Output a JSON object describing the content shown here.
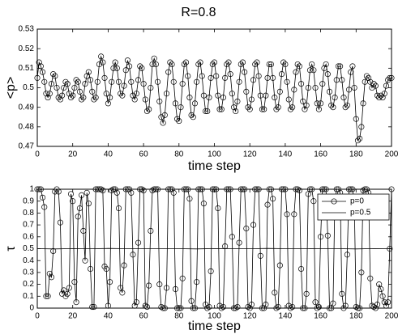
{
  "chart_data": [
    {
      "type": "line",
      "title": "R=0.8",
      "xlabel": "time step",
      "ylabel": "<p>",
      "xlim": [
        0,
        200
      ],
      "xticks": [
        0,
        20,
        40,
        60,
        80,
        100,
        120,
        140,
        160,
        180,
        200
      ],
      "ylim": [
        0.47,
        0.53
      ],
      "yticks": [
        0.47,
        0.48,
        0.49,
        0.5,
        0.51,
        0.52,
        0.53
      ],
      "x": [
        0,
        1,
        2,
        3,
        4,
        5,
        6,
        7,
        8,
        9,
        10,
        11,
        12,
        13,
        14,
        15,
        16,
        17,
        18,
        19,
        20,
        21,
        22,
        23,
        24,
        25,
        26,
        27,
        28,
        29,
        30,
        31,
        32,
        33,
        34,
        35,
        36,
        37,
        38,
        39,
        40,
        41,
        42,
        43,
        44,
        45,
        46,
        47,
        48,
        49,
        50,
        51,
        52,
        53,
        54,
        55,
        56,
        57,
        58,
        59,
        60,
        61,
        62,
        63,
        64,
        65,
        66,
        67,
        68,
        69,
        70,
        71,
        72,
        73,
        74,
        75,
        76,
        77,
        78,
        79,
        80,
        81,
        82,
        83,
        84,
        85,
        86,
        87,
        88,
        89,
        90,
        91,
        92,
        93,
        94,
        95,
        96,
        97,
        98,
        99,
        100,
        101,
        102,
        103,
        104,
        105,
        106,
        107,
        108,
        109,
        110,
        111,
        112,
        113,
        114,
        115,
        116,
        117,
        118,
        119,
        120,
        121,
        122,
        123,
        124,
        125,
        126,
        127,
        128,
        129,
        130,
        131,
        132,
        133,
        134,
        135,
        136,
        137,
        138,
        139,
        140,
        141,
        142,
        143,
        144,
        145,
        146,
        147,
        148,
        149,
        150,
        151,
        152,
        153,
        154,
        155,
        156,
        157,
        158,
        159,
        160,
        161,
        162,
        163,
        164,
        165,
        166,
        167,
        168,
        169,
        170,
        171,
        172,
        173,
        174,
        175,
        176,
        177,
        178,
        179,
        180,
        181,
        182,
        183,
        184,
        185,
        186,
        187,
        188,
        189,
        190,
        191,
        192,
        193,
        194,
        195,
        196,
        197,
        198,
        199,
        200
      ],
      "series": [
        {
          "color": "#000000",
          "marker": "circle",
          "values": [
            0.505,
            0.513,
            0.511,
            0.508,
            0.503,
            0.497,
            0.495,
            0.497,
            0.502,
            0.507,
            0.506,
            0.5,
            0.495,
            0.494,
            0.496,
            0.5,
            0.503,
            0.502,
            0.497,
            0.495,
            0.496,
            0.5,
            0.504,
            0.503,
            0.498,
            0.494,
            0.495,
            0.502,
            0.506,
            0.508,
            0.504,
            0.498,
            0.494,
            0.495,
            0.503,
            0.512,
            0.516,
            0.513,
            0.505,
            0.497,
            0.492,
            0.495,
            0.503,
            0.51,
            0.513,
            0.51,
            0.503,
            0.497,
            0.496,
            0.501,
            0.509,
            0.514,
            0.511,
            0.503,
            0.496,
            0.494,
            0.497,
            0.504,
            0.511,
            0.51,
            0.502,
            0.494,
            0.488,
            0.489,
            0.5,
            0.512,
            0.515,
            0.512,
            0.503,
            0.493,
            0.485,
            0.482,
            0.486,
            0.497,
            0.508,
            0.513,
            0.512,
            0.503,
            0.492,
            0.484,
            0.483,
            0.49,
            0.502,
            0.512,
            0.513,
            0.506,
            0.495,
            0.486,
            0.485,
            0.492,
            0.503,
            0.512,
            0.513,
            0.506,
            0.496,
            0.488,
            0.488,
            0.495,
            0.505,
            0.512,
            0.513,
            0.506,
            0.496,
            0.489,
            0.489,
            0.495,
            0.505,
            0.512,
            0.513,
            0.507,
            0.497,
            0.49,
            0.488,
            0.493,
            0.503,
            0.512,
            0.513,
            0.508,
            0.498,
            0.49,
            0.489,
            0.494,
            0.504,
            0.512,
            0.513,
            0.506,
            0.496,
            0.489,
            0.489,
            0.496,
            0.505,
            0.512,
            0.512,
            0.505,
            0.495,
            0.489,
            0.49,
            0.498,
            0.507,
            0.513,
            0.512,
            0.503,
            0.494,
            0.489,
            0.49,
            0.499,
            0.508,
            0.512,
            0.511,
            0.502,
            0.493,
            0.489,
            0.491,
            0.5,
            0.509,
            0.512,
            0.509,
            0.5,
            0.492,
            0.489,
            0.492,
            0.502,
            0.51,
            0.512,
            0.507,
            0.498,
            0.491,
            0.49,
            0.495,
            0.504,
            0.511,
            0.511,
            0.504,
            0.495,
            0.49,
            0.491,
            0.499,
            0.508,
            0.511,
            0.5,
            0.484,
            0.473,
            0.474,
            0.48,
            0.492,
            0.503,
            0.506,
            0.505,
            0.503,
            0.5,
            0.502,
            0.501,
            0.496,
            0.495,
            0.496,
            0.495,
            0.497,
            0.501,
            0.504,
            0.505,
            0.505
          ]
        }
      ]
    },
    {
      "type": "line",
      "xlabel": "time step",
      "ylabel": "τ",
      "xlim": [
        0,
        200
      ],
      "xticks": [
        0,
        20,
        40,
        60,
        80,
        100,
        120,
        140,
        160,
        180,
        200
      ],
      "ylim": [
        0,
        1
      ],
      "yticks": [
        0,
        0.1,
        0.2,
        0.3,
        0.4,
        0.5,
        0.6,
        0.7,
        0.8,
        0.9,
        1
      ],
      "legend": "upper right",
      "x": [
        0,
        1,
        2,
        3,
        4,
        5,
        6,
        7,
        8,
        9,
        10,
        11,
        12,
        13,
        14,
        15,
        16,
        17,
        18,
        19,
        20,
        21,
        22,
        23,
        24,
        25,
        26,
        27,
        28,
        29,
        30,
        31,
        32,
        33,
        34,
        35,
        36,
        37,
        38,
        39,
        40,
        41,
        42,
        43,
        44,
        45,
        46,
        47,
        48,
        49,
        50,
        51,
        52,
        53,
        54,
        55,
        56,
        57,
        58,
        59,
        60,
        61,
        62,
        63,
        64,
        65,
        66,
        67,
        68,
        69,
        70,
        71,
        72,
        73,
        74,
        75,
        76,
        77,
        78,
        79,
        80,
        81,
        82,
        83,
        84,
        85,
        86,
        87,
        88,
        89,
        90,
        91,
        92,
        93,
        94,
        95,
        96,
        97,
        98,
        99,
        100,
        101,
        102,
        103,
        104,
        105,
        106,
        107,
        108,
        109,
        110,
        111,
        112,
        113,
        114,
        115,
        116,
        117,
        118,
        119,
        120,
        121,
        122,
        123,
        124,
        125,
        126,
        127,
        128,
        129,
        130,
        131,
        132,
        133,
        134,
        135,
        136,
        137,
        138,
        139,
        140,
        141,
        142,
        143,
        144,
        145,
        146,
        147,
        148,
        149,
        150,
        151,
        152,
        153,
        154,
        155,
        156,
        157,
        158,
        159,
        160,
        161,
        162,
        163,
        164,
        165,
        166,
        167,
        168,
        169,
        170,
        171,
        172,
        173,
        174,
        175,
        176,
        177,
        178,
        179,
        180,
        181,
        182,
        183,
        184,
        185,
        186,
        187,
        188,
        189,
        190,
        191,
        192,
        193,
        194,
        195,
        196,
        197,
        198,
        199,
        200
      ],
      "series": [
        {
          "name": "p=0",
          "color": "#000000",
          "marker": "circle",
          "values": [
            1,
            1,
            1,
            0.93,
            0.85,
            0.1,
            0.1,
            0.29,
            0.26,
            0.48,
            0.98,
            1,
            0.98,
            0.72,
            0.12,
            0.15,
            0.1,
            0.12,
            0.17,
            0.96,
            0.9,
            0.22,
            0.05,
            0.77,
            0.84,
            0.95,
            0.65,
            0.4,
            0.97,
            0.88,
            0.33,
            0.01,
            0.01,
            1,
            1,
            1,
            1,
            0.99,
            0.35,
            0.33,
            0.02,
            0.22,
            0.99,
            1,
            1,
            0.97,
            0.84,
            0.17,
            0.13,
            0.36,
            1,
            1,
            1,
            0.97,
            0.45,
            0.02,
            0.05,
            0.55,
            1,
            1,
            0.99,
            0.02,
            0.01,
            0.19,
            0.65,
            0.99,
            1,
            1,
            1,
            0.2,
            0.01,
            0,
            0,
            0.17,
            1,
            1,
            1,
            0.97,
            0.16,
            0,
            0,
            0,
            0.25,
            1,
            1,
            1,
            0.92,
            0.06,
            0,
            0,
            0.22,
            1,
            1,
            1,
            0.88,
            0.03,
            0,
            0.01,
            0.31,
            1,
            1,
            1,
            0.84,
            0.02,
            0,
            0.01,
            0.52,
            1,
            1,
            1,
            0.6,
            0,
            0,
            0.01,
            0.55,
            1,
            1,
            1,
            0.67,
            0.01,
            0,
            0.03,
            0.7,
            1,
            1,
            1,
            0.44,
            0,
            0,
            0.03,
            0.87,
            1,
            1,
            0.92,
            0.13,
            0,
            0.01,
            0.36,
            1,
            1,
            1,
            0.79,
            0.02,
            0,
            0.01,
            0.79,
            1,
            1,
            0.99,
            0.33,
            0,
            0,
            0.12,
            0.96,
            1,
            1,
            0.9,
            0.05,
            0,
            0.01,
            0.6,
            1,
            1,
            1,
            0.61,
            0,
            0,
            0.04,
            0.9,
            1,
            1,
            0.97,
            0.12,
            0,
            0.02,
            0.45,
            1,
            1,
            1,
            0.88,
            0.01,
            0,
            0,
            0.3,
            0.99,
            1,
            1,
            0.97,
            0.25,
            0.02,
            0.01,
            0,
            0.03,
            0.2,
            0.16,
            0.1,
            0.05,
            0.02,
            0.05,
            0.5,
            1
          ]
        },
        {
          "name": "p=0.5",
          "color": "#000000",
          "x": [
            0,
            10,
            20,
            30,
            40,
            50,
            60,
            70,
            80,
            90,
            100,
            110,
            120,
            130,
            140,
            150,
            160,
            170,
            180,
            190,
            200
          ],
          "values": [
            0.5,
            0.498,
            0.501,
            0.499,
            0.502,
            0.5,
            0.499,
            0.501,
            0.5,
            0.498,
            0.501,
            0.5,
            0.499,
            0.502,
            0.5,
            0.499,
            0.501,
            0.5,
            0.498,
            0.501,
            0.5
          ]
        }
      ]
    }
  ]
}
